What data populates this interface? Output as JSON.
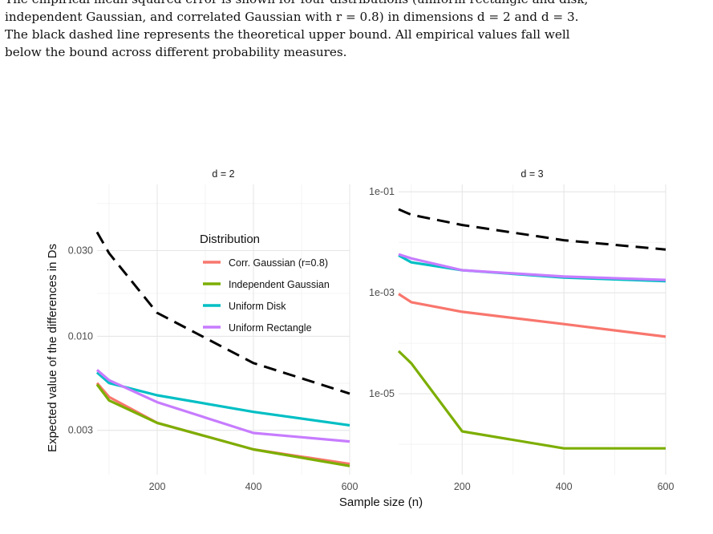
{
  "caption": {
    "line0_partial": "",
    "line1": "The empirical mean squared error is shown for four distributions (uniform rectangle and disk,",
    "line2": "independent Gaussian, and correlated Gaussian with r = 0.8) in dimensions d = 2 and d = 3.",
    "line3": "The black dashed line represents the theoretical upper bound. All empirical values fall well",
    "line4": "below the bound across different probability measures."
  },
  "footer_partial": "",
  "chart_data": {
    "type": "line",
    "ylabel": "Expected value of the differences in Ds",
    "xlabel": "Sample size (n)",
    "y_scale": "log",
    "grid": true,
    "legend": {
      "title": "Distribution",
      "placement": "inside top-right of left panel",
      "entries": [
        {
          "name": "Corr. Gaussian (r=0.8)",
          "color": "#F8766D"
        },
        {
          "name": "Independent Gaussian",
          "color": "#7CAE00"
        },
        {
          "name": "Uniform Disk",
          "color": "#00BFC4"
        },
        {
          "name": "Uniform Rectangle",
          "color": "#C77CFF"
        }
      ]
    },
    "bound_style": {
      "color": "#000000",
      "dash": true
    },
    "panels": [
      {
        "title": "d = 2",
        "x": [
          75,
          100,
          200,
          400,
          600
        ],
        "xlim": [
          75,
          600
        ],
        "ylim": [
          0.0017,
          0.07
        ],
        "x_ticks": [
          200,
          400,
          600
        ],
        "y_ticks": [
          0.003,
          0.01,
          0.03
        ],
        "y_tick_labels": [
          "0.003",
          "0.010",
          "0.030"
        ],
        "bound": [
          0.038,
          0.029,
          0.0135,
          0.0071,
          0.0048
        ],
        "series": [
          {
            "name": "Corr. Gaussian (r=0.8)",
            "values": [
              0.0055,
              0.0046,
              0.0033,
              0.00235,
              0.00195
            ]
          },
          {
            "name": "Independent Gaussian",
            "values": [
              0.0054,
              0.0044,
              0.0033,
              0.00235,
              0.0019
            ]
          },
          {
            "name": "Uniform Disk",
            "values": [
              0.0063,
              0.0055,
              0.0047,
              0.0038,
              0.0032
            ]
          },
          {
            "name": "Uniform Rectangle",
            "values": [
              0.0065,
              0.0057,
              0.0043,
              0.0029,
              0.0026
            ]
          }
        ]
      },
      {
        "title": "d = 3",
        "x": [
          75,
          100,
          200,
          400,
          600
        ],
        "xlim": [
          75,
          600
        ],
        "ylim": [
          2.5e-07,
          0.14
        ],
        "x_ticks": [
          200,
          400,
          600
        ],
        "y_ticks": [
          1e-05,
          0.001,
          0.1
        ],
        "y_tick_labels": [
          "1e-05",
          "1e-03",
          "1e-01"
        ],
        "bound": [
          0.045,
          0.035,
          0.022,
          0.011,
          0.0072
        ],
        "series": [
          {
            "name": "Corr. Gaussian (r=0.8)",
            "values": [
              0.00095,
              0.00065,
              0.00042,
              0.00024,
              0.000135
            ]
          },
          {
            "name": "Independent Gaussian",
            "values": [
              7e-05,
              4e-05,
              1.8e-06,
              8.3e-07,
              8.3e-07
            ]
          },
          {
            "name": "Uniform Disk",
            "values": [
              0.0055,
              0.004,
              0.0028,
              0.002,
              0.0017
            ]
          },
          {
            "name": "Uniform Rectangle",
            "values": [
              0.0058,
              0.0048,
              0.0028,
              0.0021,
              0.0018
            ]
          }
        ]
      }
    ]
  }
}
